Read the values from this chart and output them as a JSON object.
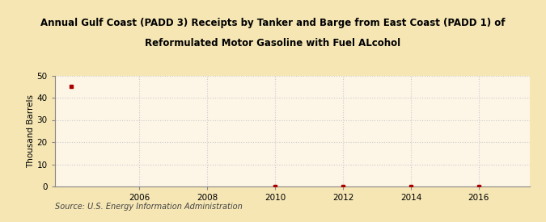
{
  "title_line1": "Annual Gulf Coast (PADD 3) Receipts by Tanker and Barge from East Coast (PADD 1) of",
  "title_line2": "Reformulated Motor Gasoline with Fuel ALcohol",
  "ylabel": "Thousand Barrels",
  "source": "Source: U.S. Energy Information Administration",
  "background_color": "#f5dfa0",
  "plot_background_color": "#fdf5e6",
  "data_x": [
    2004,
    2010,
    2012,
    2014,
    2016
  ],
  "data_y": [
    45,
    0,
    0,
    0,
    0
  ],
  "marker_color": "#aa0000",
  "xlim": [
    2003.5,
    2017.5
  ],
  "ylim": [
    0,
    50
  ],
  "xticks": [
    2006,
    2008,
    2010,
    2012,
    2014,
    2016
  ],
  "yticks": [
    0,
    10,
    20,
    30,
    40,
    50
  ],
  "grid_color": "#cccccc",
  "title_fontsize": 8.5,
  "axis_fontsize": 7.5,
  "ylabel_fontsize": 7.5,
  "source_fontsize": 7.0,
  "fig_bg": "#f5e6b4"
}
